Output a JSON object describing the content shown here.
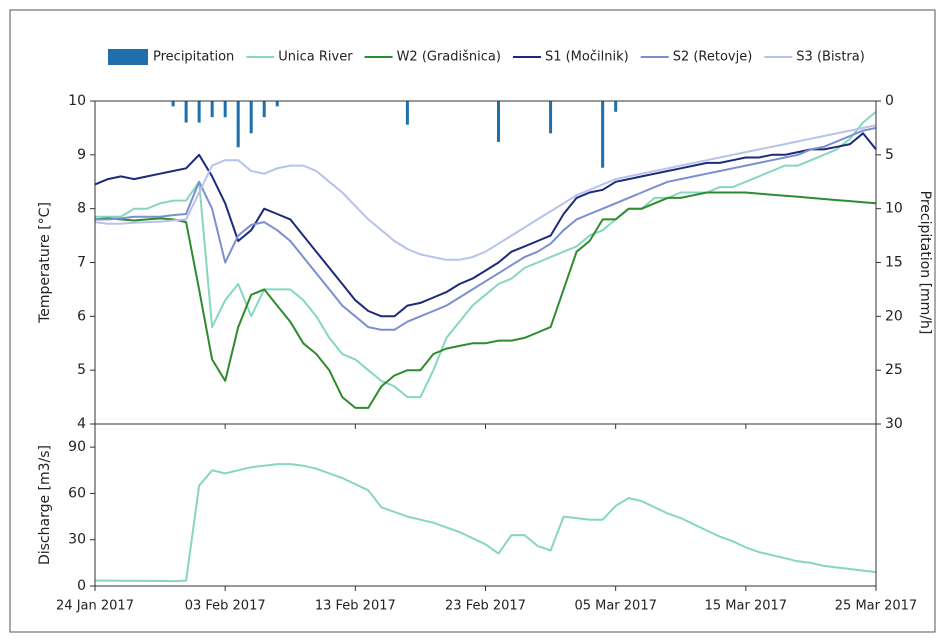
{
  "chart_data": [
    {
      "type": "line",
      "x": [
        "2017-01-24",
        "2017-01-25",
        "2017-01-26",
        "2017-01-27",
        "2017-01-28",
        "2017-01-29",
        "2017-01-30",
        "2017-01-31",
        "2017-02-01",
        "2017-02-02",
        "2017-02-03",
        "2017-02-04",
        "2017-02-05",
        "2017-02-06",
        "2017-02-07",
        "2017-02-08",
        "2017-02-09",
        "2017-02-10",
        "2017-02-11",
        "2017-02-12",
        "2017-02-13",
        "2017-02-14",
        "2017-02-15",
        "2017-02-16",
        "2017-02-17",
        "2017-02-18",
        "2017-02-19",
        "2017-02-20",
        "2017-02-21",
        "2017-02-22",
        "2017-02-23",
        "2017-02-24",
        "2017-02-25",
        "2017-02-26",
        "2017-02-27",
        "2017-02-28",
        "2017-03-01",
        "2017-03-02",
        "2017-03-03",
        "2017-03-04",
        "2017-03-05",
        "2017-03-06",
        "2017-03-07",
        "2017-03-08",
        "2017-03-09",
        "2017-03-10",
        "2017-03-11",
        "2017-03-12",
        "2017-03-13",
        "2017-03-14",
        "2017-03-15",
        "2017-03-16",
        "2017-03-17",
        "2017-03-18",
        "2017-03-19",
        "2017-03-20",
        "2017-03-21",
        "2017-03-22",
        "2017-03-23",
        "2017-03-24",
        "2017-03-25"
      ],
      "xlim": [
        "2017-01-24",
        "2017-03-25"
      ],
      "ylim": [
        4,
        10
      ],
      "yticks": [
        4,
        5,
        6,
        7,
        8,
        9,
        10
      ],
      "y2lim": [
        0,
        30
      ],
      "y2ticks": [
        0,
        5,
        10,
        15,
        20,
        25,
        30
      ],
      "y2_inverted": true,
      "ylabel": "Temperature [°C]",
      "y2label": "Precipitation [mm/h]",
      "legend": "top",
      "series": [
        {
          "name": "Precipitation",
          "type": "bar",
          "axis": "y2",
          "color": "#1f6fad",
          "values": [
            0,
            0,
            0,
            0,
            0,
            0,
            0.5,
            2,
            2,
            1.5,
            1.5,
            4.3,
            3,
            1.5,
            0.5,
            0,
            0,
            0,
            0,
            0,
            0,
            0,
            0,
            0,
            2.2,
            0,
            0,
            0,
            0,
            0,
            0,
            3.8,
            0,
            0,
            0,
            3,
            0,
            0,
            0,
            6.2,
            1,
            0,
            0,
            0,
            0,
            0,
            0,
            0,
            0,
            0,
            0,
            0,
            0,
            0,
            0,
            0,
            0,
            0,
            0,
            0,
            0
          ]
        },
        {
          "name": "Unica River",
          "color": "#86d7bd",
          "values": [
            7.85,
            7.85,
            7.85,
            8.0,
            8.0,
            8.1,
            8.15,
            8.15,
            8.5,
            5.8,
            6.3,
            6.6,
            6.0,
            6.5,
            6.5,
            6.5,
            6.3,
            6.0,
            5.6,
            5.3,
            5.2,
            5.0,
            4.8,
            4.7,
            4.5,
            4.5,
            5.0,
            5.6,
            5.9,
            6.2,
            6.4,
            6.6,
            6.7,
            6.9,
            7.0,
            7.1,
            7.2,
            7.3,
            7.5,
            7.6,
            7.8,
            8.0,
            8.0,
            8.2,
            8.2,
            8.3,
            8.3,
            8.3,
            8.4,
            8.4,
            8.5,
            8.6,
            8.7,
            8.8,
            8.8,
            8.9,
            9.0,
            9.1,
            9.3,
            9.6,
            9.8
          ]
        },
        {
          "name": "W2 (Gradišnica)",
          "color": "#2e8b2e",
          "values": [
            7.8,
            7.82,
            7.8,
            7.78,
            7.8,
            7.82,
            7.8,
            7.75,
            6.5,
            5.2,
            4.8,
            5.8,
            6.4,
            6.5,
            6.2,
            5.9,
            5.5,
            5.3,
            5.0,
            4.5,
            4.3,
            4.3,
            4.7,
            4.9,
            5.0,
            5.0,
            5.3,
            5.4,
            5.45,
            5.5,
            5.5,
            5.55,
            5.55,
            5.6,
            5.7,
            5.8,
            6.5,
            7.2,
            7.4,
            7.8,
            7.8,
            8.0,
            8.0,
            8.1,
            8.2,
            8.2,
            8.25,
            8.3,
            8.3,
            8.3,
            8.3,
            8.28,
            8.26,
            8.24,
            8.22,
            8.2,
            8.18,
            8.16,
            8.14,
            8.12,
            8.1
          ]
        },
        {
          "name": "S1 (Močilnik)",
          "color": "#1c2a7a",
          "values": [
            8.45,
            8.55,
            8.6,
            8.55,
            8.6,
            8.65,
            8.7,
            8.75,
            9.0,
            8.6,
            8.1,
            7.4,
            7.6,
            8.0,
            7.9,
            7.8,
            7.5,
            7.2,
            6.9,
            6.6,
            6.3,
            6.1,
            6.0,
            6.0,
            6.2,
            6.25,
            6.35,
            6.45,
            6.6,
            6.7,
            6.85,
            7.0,
            7.2,
            7.3,
            7.4,
            7.5,
            7.9,
            8.2,
            8.3,
            8.35,
            8.5,
            8.55,
            8.6,
            8.65,
            8.7,
            8.75,
            8.8,
            8.85,
            8.85,
            8.9,
            8.95,
            8.95,
            9.0,
            9.0,
            9.05,
            9.1,
            9.1,
            9.15,
            9.2,
            9.4,
            9.1
          ]
        },
        {
          "name": "S2 (Retovje)",
          "color": "#7b8fd0",
          "values": [
            7.8,
            7.8,
            7.82,
            7.85,
            7.85,
            7.85,
            7.88,
            7.9,
            8.5,
            8.0,
            7.0,
            7.5,
            7.7,
            7.75,
            7.6,
            7.4,
            7.1,
            6.8,
            6.5,
            6.2,
            6.0,
            5.8,
            5.75,
            5.75,
            5.9,
            6.0,
            6.1,
            6.2,
            6.35,
            6.5,
            6.65,
            6.8,
            6.95,
            7.1,
            7.2,
            7.35,
            7.6,
            7.8,
            7.9,
            8.0,
            8.1,
            8.2,
            8.3,
            8.4,
            8.5,
            8.55,
            8.6,
            8.65,
            8.7,
            8.75,
            8.8,
            8.85,
            8.9,
            8.95,
            9.0,
            9.1,
            9.15,
            9.25,
            9.35,
            9.45,
            9.5
          ]
        },
        {
          "name": "S3 (Bistra)",
          "color": "#b8c2ea",
          "values": [
            7.75,
            7.72,
            7.72,
            7.74,
            7.75,
            7.76,
            7.78,
            7.8,
            8.3,
            8.8,
            8.9,
            8.9,
            8.7,
            8.65,
            8.75,
            8.8,
            8.8,
            8.7,
            8.5,
            8.3,
            8.05,
            7.8,
            7.6,
            7.4,
            7.25,
            7.15,
            7.1,
            7.05,
            7.05,
            7.1,
            7.2,
            7.35,
            7.5,
            7.65,
            7.8,
            7.95,
            8.1,
            8.25,
            8.35,
            8.45,
            8.55,
            8.6,
            8.65,
            8.7,
            8.75,
            8.8,
            8.85,
            8.9,
            8.95,
            9.0,
            9.05,
            9.1,
            9.15,
            9.2,
            9.25,
            9.3,
            9.35,
            9.4,
            9.45,
            9.5,
            9.55
          ]
        }
      ]
    },
    {
      "type": "line",
      "x": [
        "2017-01-24",
        "2017-01-25",
        "2017-01-26",
        "2017-01-27",
        "2017-01-28",
        "2017-01-29",
        "2017-01-30",
        "2017-01-31",
        "2017-02-01",
        "2017-02-02",
        "2017-02-03",
        "2017-02-04",
        "2017-02-05",
        "2017-02-06",
        "2017-02-07",
        "2017-02-08",
        "2017-02-09",
        "2017-02-10",
        "2017-02-11",
        "2017-02-12",
        "2017-02-13",
        "2017-02-14",
        "2017-02-15",
        "2017-02-16",
        "2017-02-17",
        "2017-02-18",
        "2017-02-19",
        "2017-02-20",
        "2017-02-21",
        "2017-02-22",
        "2017-02-23",
        "2017-02-24",
        "2017-02-25",
        "2017-02-26",
        "2017-02-27",
        "2017-02-28",
        "2017-03-01",
        "2017-03-02",
        "2017-03-03",
        "2017-03-04",
        "2017-03-05",
        "2017-03-06",
        "2017-03-07",
        "2017-03-08",
        "2017-03-09",
        "2017-03-10",
        "2017-03-11",
        "2017-03-12",
        "2017-03-13",
        "2017-03-14",
        "2017-03-15",
        "2017-03-16",
        "2017-03-17",
        "2017-03-18",
        "2017-03-19",
        "2017-03-20",
        "2017-03-21",
        "2017-03-22",
        "2017-03-23",
        "2017-03-24",
        "2017-03-25"
      ],
      "xlim": [
        "2017-01-24",
        "2017-03-25"
      ],
      "xticks": [
        {
          "value": "2017-01-24",
          "label": "24 Jan 2017"
        },
        {
          "value": "2017-02-03",
          "label": "03 Feb 2017"
        },
        {
          "value": "2017-02-13",
          "label": "13 Feb 2017"
        },
        {
          "value": "2017-02-23",
          "label": "23 Feb 2017"
        },
        {
          "value": "2017-03-05",
          "label": "05 Mar 2017"
        },
        {
          "value": "2017-03-15",
          "label": "15 Mar 2017"
        },
        {
          "value": "2017-03-25",
          "label": "25 Mar 2017"
        }
      ],
      "ylim": [
        0,
        105
      ],
      "yticks": [
        0,
        30,
        60,
        90
      ],
      "ylabel": "Discharge [m3/s]",
      "color": "#86d7bd",
      "values": [
        3.5,
        3.5,
        3.4,
        3.4,
        3.3,
        3.3,
        3.2,
        3.5,
        65,
        75,
        73,
        75,
        77,
        78,
        79,
        79,
        78,
        76,
        73,
        70,
        66,
        62,
        51,
        48,
        45,
        43,
        41,
        38,
        35,
        31,
        27,
        21,
        33,
        33,
        26,
        23,
        45,
        44,
        43,
        43,
        52,
        57,
        55,
        51,
        47,
        44,
        40,
        36,
        32,
        29,
        25,
        22,
        20,
        18,
        16,
        15,
        13,
        12,
        11,
        10,
        9
      ]
    }
  ]
}
